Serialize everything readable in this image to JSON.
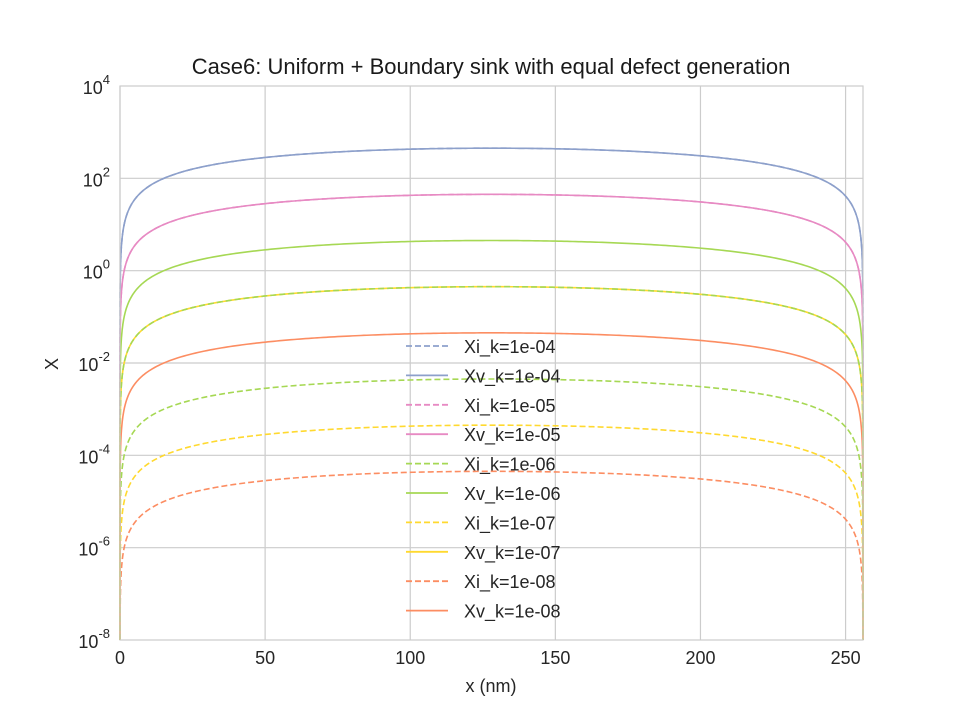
{
  "chart_data": {
    "type": "line",
    "title": "Case6: Uniform + Boundary sink with equal defect generation",
    "xlabel": "x (nm)",
    "ylabel": "X",
    "xlim": [
      0,
      256
    ],
    "ylim_exponents": [
      -8,
      4
    ],
    "yscale": "log",
    "x_ticks": [
      0,
      50,
      100,
      150,
      200,
      250
    ],
    "y_tick_exponents": [
      -8,
      -6,
      -4,
      -2,
      0,
      2,
      4
    ],
    "grid": true,
    "legend_position": "lower-center",
    "series": [
      {
        "name": "Xi_k=1e-04",
        "color": "#8da0cb",
        "style": "dashed",
        "peak": 450
      },
      {
        "name": "Xv_k=1e-04",
        "color": "#8da0cb",
        "style": "solid",
        "peak": 450
      },
      {
        "name": "Xi_k=1e-05",
        "color": "#e78ac3",
        "style": "dashed",
        "peak": 45
      },
      {
        "name": "Xv_k=1e-05",
        "color": "#e78ac3",
        "style": "solid",
        "peak": 45
      },
      {
        "name": "Xi_k=1e-06",
        "color": "#a6d854",
        "style": "dashed",
        "peak": 0.0045
      },
      {
        "name": "Xv_k=1e-06",
        "color": "#a6d854",
        "style": "solid",
        "peak": 4.5
      },
      {
        "name": "Xi_k=1e-07",
        "color": "#ffd92f",
        "style": "dashed",
        "peak": 0.00045
      },
      {
        "name": "Xv_k=1e-07",
        "color": "#ffd92f",
        "style": "solid",
        "peak": 0.45
      },
      {
        "name": "Xi_k=1e-08",
        "color": "#fc8d62",
        "style": "dashed",
        "peak": 4.5e-05
      },
      {
        "name": "Xv_k=1e-08",
        "color": "#fc8d62",
        "style": "solid",
        "peak": 0.045
      },
      {
        "name": "",
        "color": "#a6d854",
        "style": "dashed",
        "peak": 0.45,
        "legend": false
      }
    ]
  }
}
